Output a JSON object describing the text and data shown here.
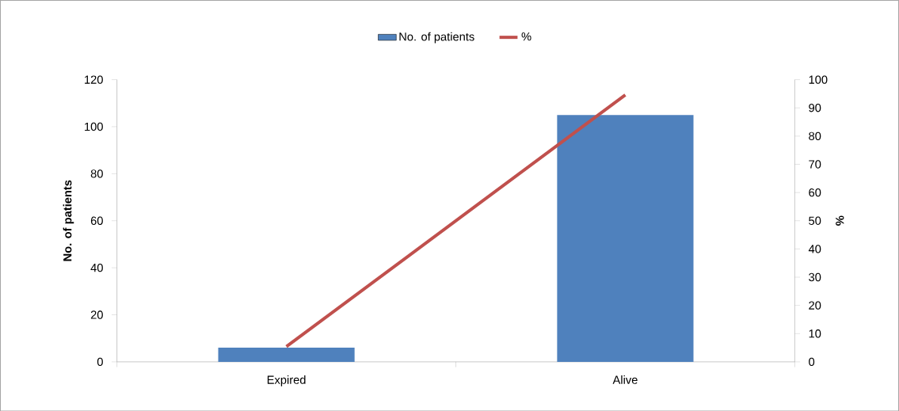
{
  "chart_data": {
    "type": "bar",
    "categories": [
      "Expired",
      "Alive"
    ],
    "ylabel": "No. of patients",
    "y2label": "%",
    "series": [
      {
        "name": "No. of patients",
        "type": "bar",
        "color": "#4f81bd",
        "values": [
          6,
          105
        ]
      },
      {
        "name": "%",
        "type": "line",
        "axis": "y2",
        "color": "#c0504d",
        "values": [
          5.4,
          94.6
        ]
      }
    ],
    "ylim": [
      0,
      120
    ],
    "yticks": [
      0,
      20,
      40,
      60,
      80,
      100,
      120
    ],
    "y2lim": [
      0,
      100
    ],
    "y2ticks": [
      0,
      10,
      20,
      30,
      40,
      50,
      60,
      70,
      80,
      90,
      100
    ],
    "legend": "top",
    "marker": "none",
    "line_style": "solid"
  }
}
